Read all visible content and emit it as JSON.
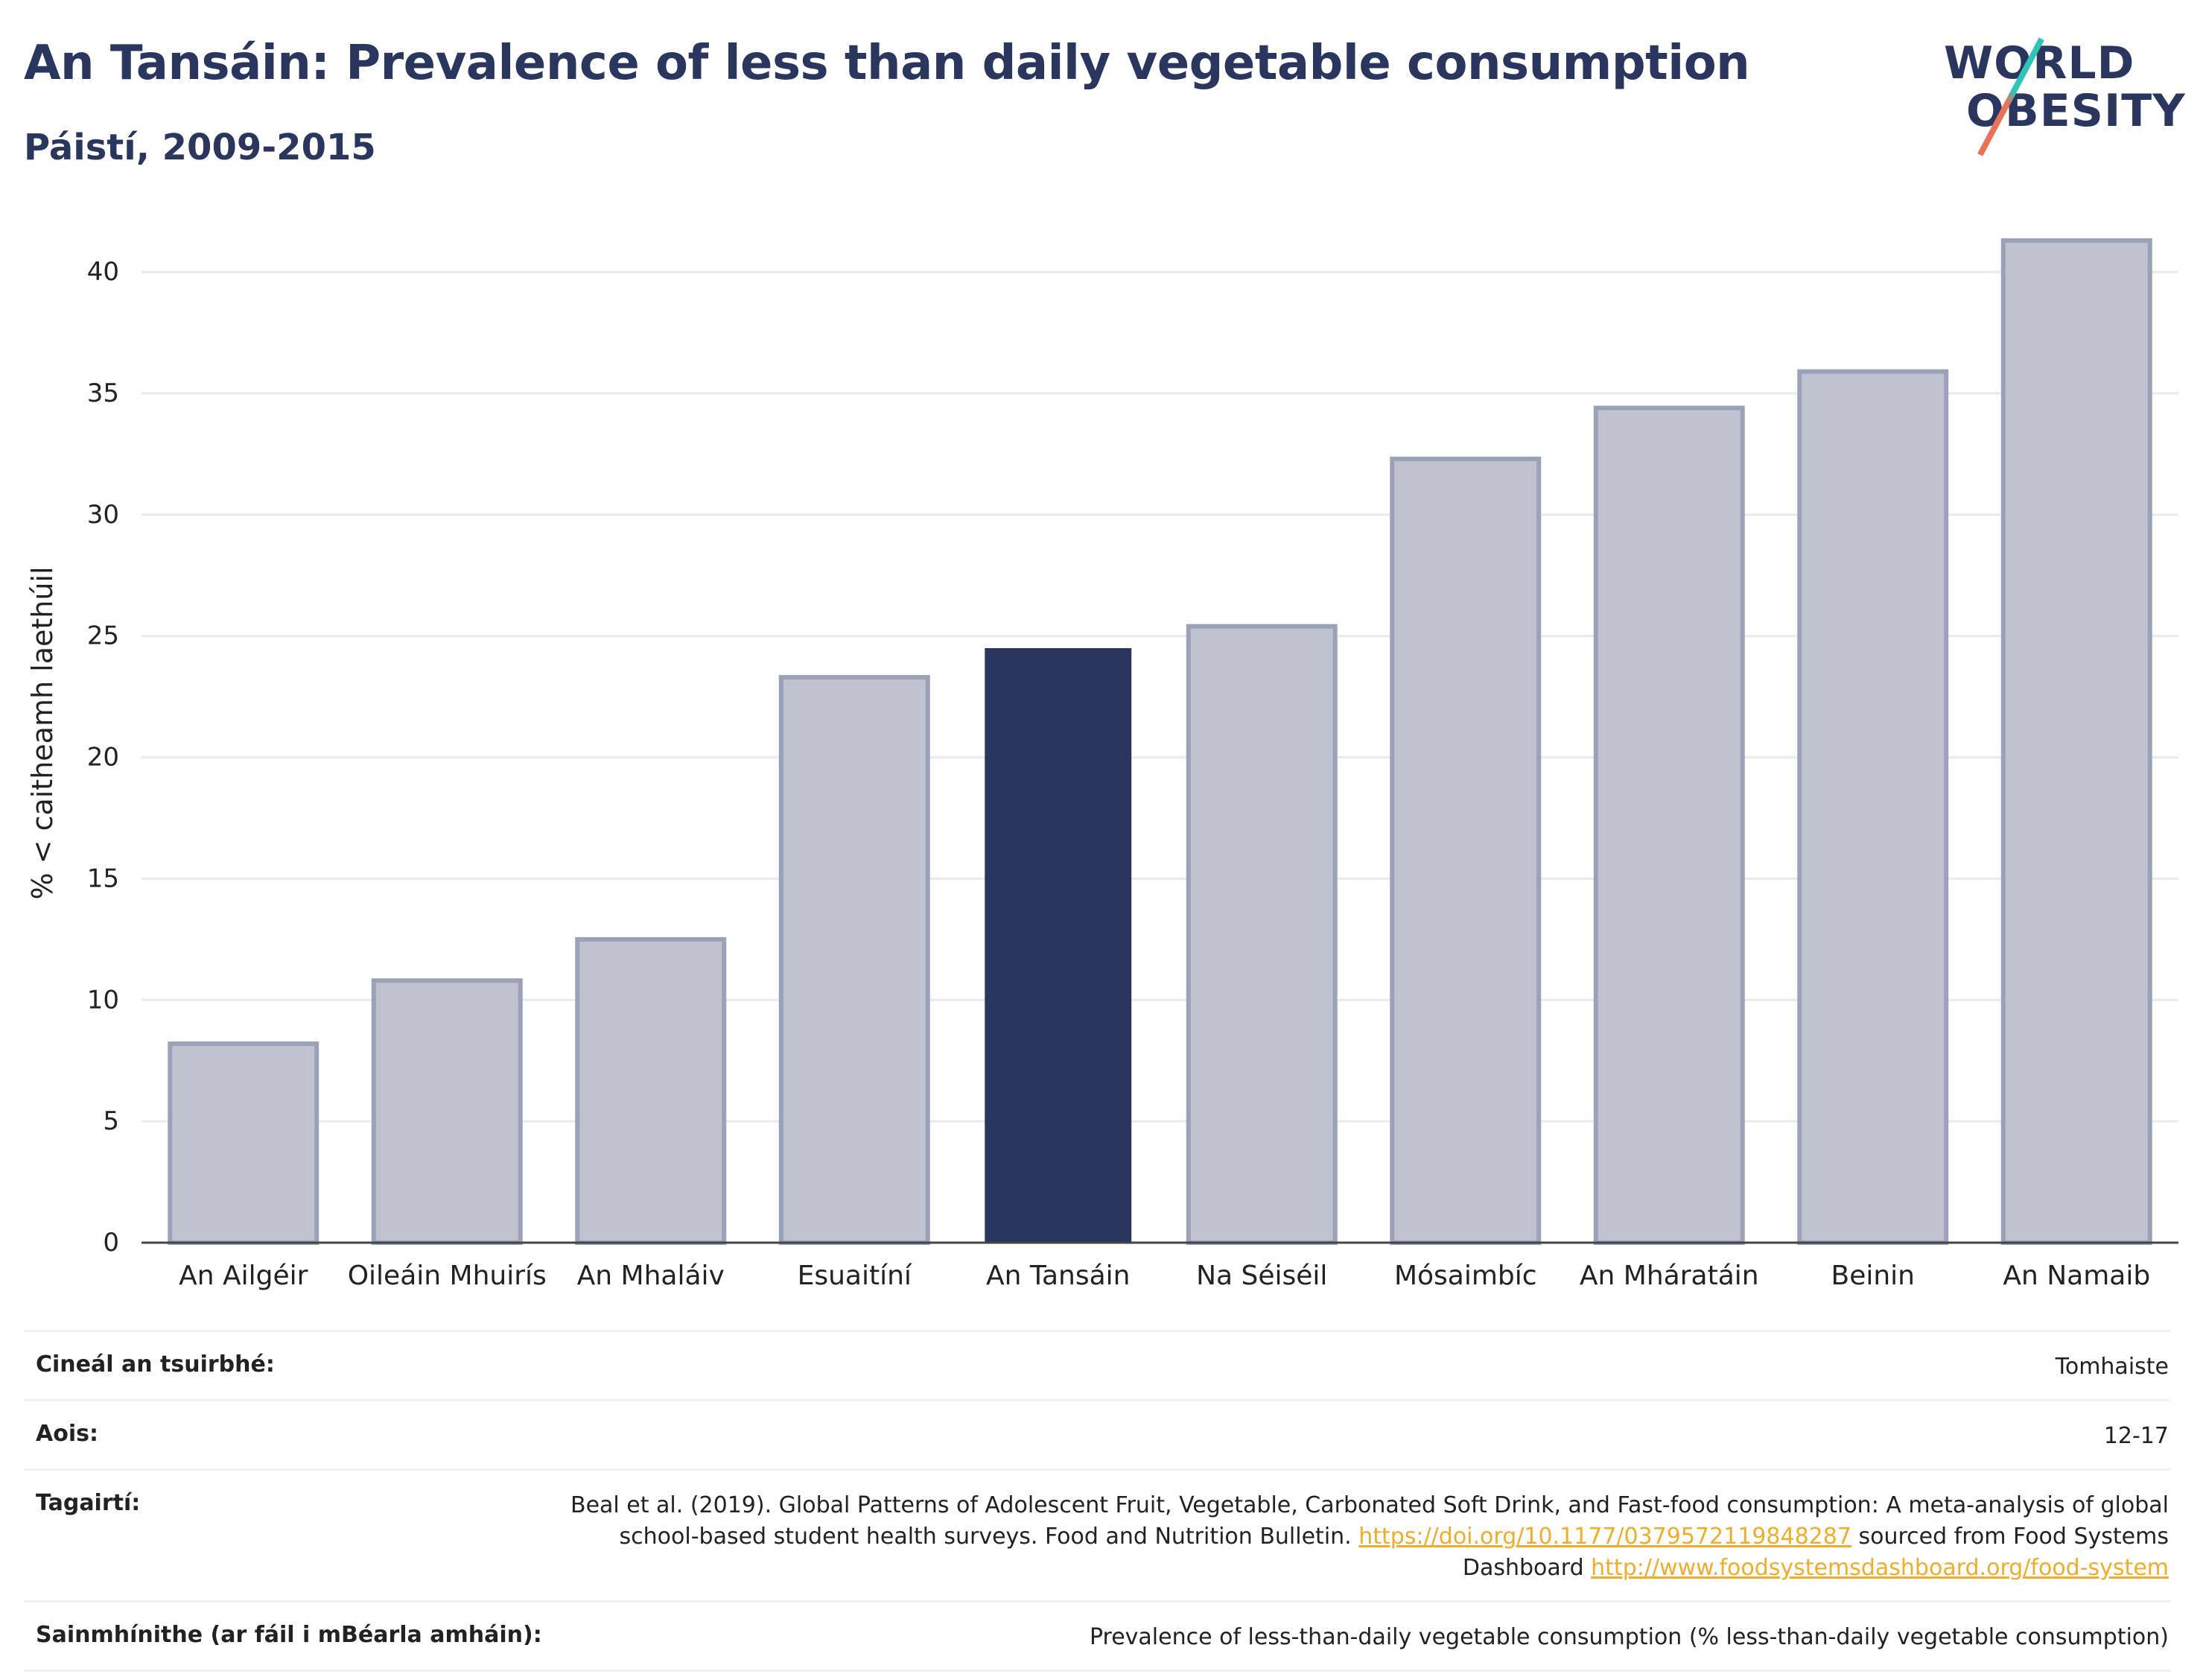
{
  "header": {
    "title": "An Tansáin: Prevalence of less than daily vegetable consumption",
    "subtitle": "Páistí, 2009-2015"
  },
  "logo": {
    "line1": "WORLD",
    "line2": "OBESITY",
    "accent_top": "#2ec4b6",
    "accent_bottom": "#e8735a"
  },
  "chart_data": {
    "type": "bar",
    "categories": [
      "An Ailgéir",
      "Oileáin Mhuirís",
      "An Mhaláiv",
      "Esuaitíní",
      "An Tansáin",
      "Na Séiséil",
      "Mósaimbíc",
      "An Mháratáin",
      "Beinin",
      "An Namaib"
    ],
    "values": [
      8.2,
      10.8,
      12.5,
      23.3,
      24.5,
      25.4,
      32.3,
      34.4,
      35.9,
      41.3
    ],
    "highlight": "An Tansáin",
    "ylabel": "% < caitheamh laethúil",
    "xlabel": "",
    "ylim": [
      0,
      42
    ],
    "yticks": [
      0,
      5,
      10,
      15,
      20,
      25,
      30,
      35,
      40
    ],
    "grid": true,
    "colors": {
      "bar": "#c0c3cf",
      "bar_border": "#9aa1b8",
      "highlight": "#2b365e",
      "grid": "#e8eaf0",
      "axis": "#444444"
    }
  },
  "footer": {
    "rows": [
      {
        "label": "Cineál an tsuirbhé:",
        "value": "Tomhaiste"
      },
      {
        "label": "Aois:",
        "value": "12-17"
      },
      {
        "label": "Tagairtí:",
        "value_prefix": "Beal et al. (2019). Global Patterns of Adolescent Fruit, Vegetable, Carbonated Soft Drink, and Fast-food consumption: A meta-analysis of global school-based student health surveys. Food and Nutrition Bulletin. ",
        "link1": "https://doi.org/10.1177/0379572119848287",
        "value_middle": " sourced from Food Systems Dashboard ",
        "link2": "http://www.foodsystemsdashboard.org/food-system"
      },
      {
        "label": "Sainmhínithe (ar fáil i mBéarla amháin):",
        "value": "Prevalence of less-than-daily vegetable consumption (% less-than-daily vegetable consumption)"
      }
    ]
  }
}
